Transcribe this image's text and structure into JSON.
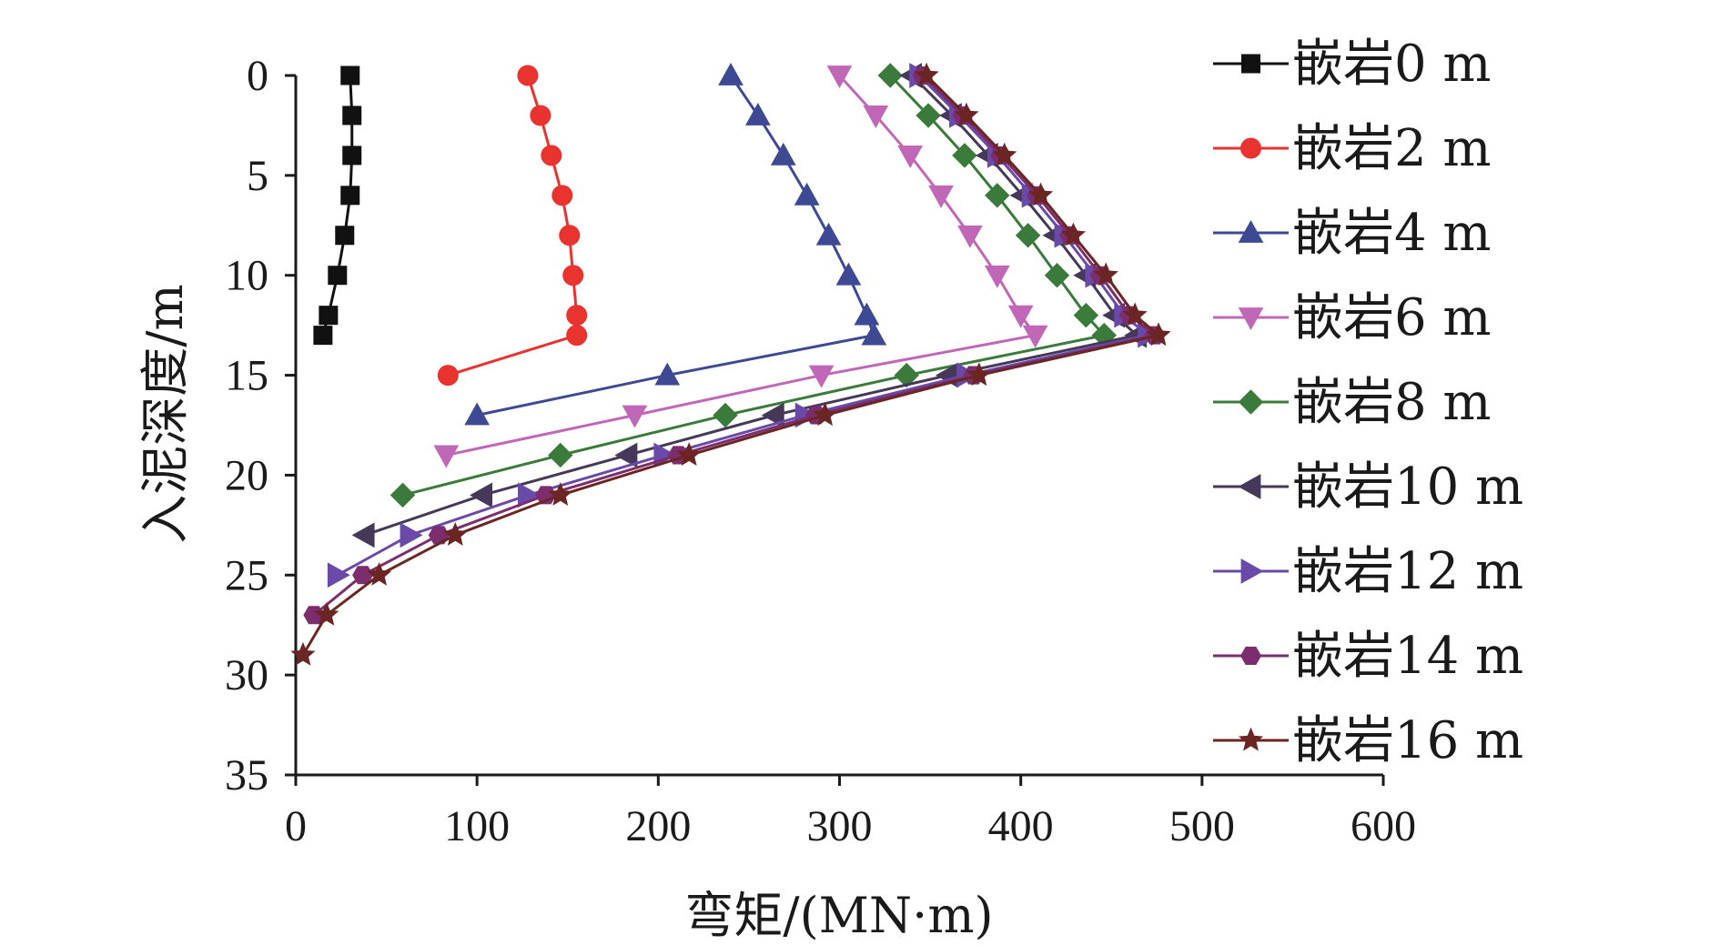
{
  "chart_data": {
    "type": "line",
    "xlabel": "弯矩/(MN·m)",
    "ylabel": "入泥深度/m",
    "xlim": [
      0,
      600
    ],
    "ylim": [
      0,
      35
    ],
    "y_inverted": true,
    "x_ticks": [
      "0",
      "100",
      "200",
      "300",
      "400",
      "500",
      "600"
    ],
    "y_ticks": [
      "0",
      "5",
      "10",
      "15",
      "20",
      "25",
      "30",
      "35"
    ],
    "legend_position": "right",
    "series": [
      {
        "name": "嵌岩0 m",
        "color": "#111111",
        "marker": "square",
        "points": [
          [
            30,
            0
          ],
          [
            31,
            2
          ],
          [
            31,
            4
          ],
          [
            30,
            6
          ],
          [
            27,
            8
          ],
          [
            23,
            10
          ],
          [
            18,
            12
          ],
          [
            15,
            13
          ]
        ]
      },
      {
        "name": "嵌岩2 m",
        "color": "#e8332e",
        "marker": "circle",
        "points": [
          [
            128,
            0
          ],
          [
            135,
            2
          ],
          [
            141,
            4
          ],
          [
            147,
            6
          ],
          [
            151,
            8
          ],
          [
            153,
            10
          ],
          [
            155,
            12
          ],
          [
            155,
            13
          ],
          [
            84,
            15
          ]
        ]
      },
      {
        "name": "嵌岩4 m",
        "color": "#3d4a93",
        "marker": "triangle-up",
        "points": [
          [
            240,
            0
          ],
          [
            255,
            2
          ],
          [
            269,
            4
          ],
          [
            282,
            6
          ],
          [
            294,
            8
          ],
          [
            305,
            10
          ],
          [
            315,
            12
          ],
          [
            319,
            13
          ],
          [
            205,
            15
          ],
          [
            100,
            17
          ]
        ]
      },
      {
        "name": "嵌岩6 m",
        "color": "#c067b8",
        "marker": "triangle-down",
        "points": [
          [
            300,
            0
          ],
          [
            320,
            2
          ],
          [
            339,
            4
          ],
          [
            356,
            6
          ],
          [
            372,
            8
          ],
          [
            387,
            10
          ],
          [
            400,
            12
          ],
          [
            408,
            13
          ],
          [
            290,
            15
          ],
          [
            187,
            17
          ],
          [
            83,
            19
          ]
        ]
      },
      {
        "name": "嵌岩8 m",
        "color": "#3a7a3a",
        "marker": "diamond",
        "points": [
          [
            328,
            0
          ],
          [
            349,
            2
          ],
          [
            369,
            4
          ],
          [
            387,
            6
          ],
          [
            404,
            8
          ],
          [
            420,
            10
          ],
          [
            436,
            12
          ],
          [
            446,
            13
          ],
          [
            337,
            15
          ],
          [
            237,
            17
          ],
          [
            146,
            19
          ],
          [
            59,
            21
          ]
        ]
      },
      {
        "name": "嵌岩10 m",
        "color": "#463858",
        "marker": "triangle-left",
        "points": [
          [
            340,
            0
          ],
          [
            362,
            2
          ],
          [
            382,
            4
          ],
          [
            401,
            6
          ],
          [
            419,
            8
          ],
          [
            436,
            10
          ],
          [
            452,
            12
          ],
          [
            464,
            13
          ],
          [
            360,
            15
          ],
          [
            264,
            17
          ],
          [
            183,
            19
          ],
          [
            103,
            21
          ],
          [
            38,
            23
          ]
        ]
      },
      {
        "name": "嵌岩12 m",
        "color": "#6a4aa8",
        "marker": "triangle-right",
        "points": [
          [
            344,
            0
          ],
          [
            366,
            2
          ],
          [
            387,
            4
          ],
          [
            406,
            6
          ],
          [
            424,
            8
          ],
          [
            441,
            10
          ],
          [
            457,
            12
          ],
          [
            470,
            13
          ],
          [
            370,
            15
          ],
          [
            281,
            17
          ],
          [
            203,
            19
          ],
          [
            128,
            21
          ],
          [
            63,
            23
          ],
          [
            23,
            25
          ]
        ]
      },
      {
        "name": "嵌岩14 m",
        "color": "#7b2d6e",
        "marker": "hexagon",
        "points": [
          [
            346,
            0
          ],
          [
            368,
            2
          ],
          [
            389,
            4
          ],
          [
            409,
            6
          ],
          [
            427,
            8
          ],
          [
            444,
            10
          ],
          [
            460,
            12
          ],
          [
            474,
            13
          ],
          [
            374,
            15
          ],
          [
            287,
            17
          ],
          [
            211,
            19
          ],
          [
            138,
            21
          ],
          [
            79,
            23
          ],
          [
            37,
            25
          ],
          [
            10,
            27
          ]
        ]
      },
      {
        "name": "嵌岩16 m",
        "color": "#6b2522",
        "marker": "star",
        "points": [
          [
            348,
            0
          ],
          [
            370,
            2
          ],
          [
            391,
            4
          ],
          [
            411,
            6
          ],
          [
            429,
            8
          ],
          [
            447,
            10
          ],
          [
            463,
            12
          ],
          [
            476,
            13
          ],
          [
            377,
            15
          ],
          [
            292,
            17
          ],
          [
            217,
            19
          ],
          [
            146,
            21
          ],
          [
            88,
            23
          ],
          [
            46,
            25
          ],
          [
            17,
            27
          ],
          [
            4,
            29
          ]
        ]
      }
    ]
  }
}
